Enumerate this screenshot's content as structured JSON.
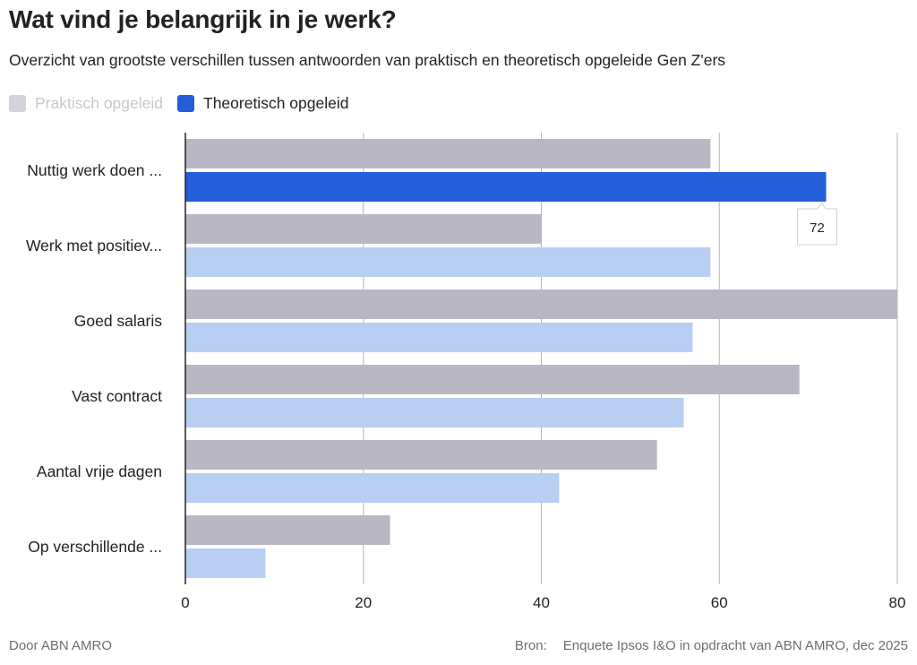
{
  "title": "Wat vind je belangrijk in je werk?",
  "subtitle": "Overzicht van grootste verschillen tussen antwoorden van praktisch en theoretisch opgeleide Gen Z'ers",
  "legend": [
    {
      "label": "Praktisch opgeleid",
      "color": "#d3d3d9",
      "active": false
    },
    {
      "label": "Theoretisch opgeleid",
      "color": "#245ed8",
      "active": true
    }
  ],
  "tooltip": {
    "text": "72"
  },
  "footer": {
    "credit": "Door ABN AMRO",
    "source_label": "Bron:",
    "source_text": "Enquete Ipsos I&O in opdracht van ABN AMRO, dec 2025"
  },
  "colors": {
    "praktisch_bar": "#bab7c4",
    "theoretisch_bar": "#b9cef3",
    "theoretisch_highlight": "#245ed8",
    "gridline": "#b6b6ba",
    "axis": "#222222"
  },
  "chart_data": {
    "type": "bar",
    "orientation": "horizontal",
    "categories": [
      "Nuttig werk doen ...",
      "Werk met positiev...",
      "Goed salaris",
      "Vast contract",
      "Aantal vrije dagen",
      "Op verschillende ..."
    ],
    "series": [
      {
        "name": "Praktisch opgeleid",
        "values": [
          59,
          40,
          80,
          69,
          53,
          23
        ]
      },
      {
        "name": "Theoretisch opgeleid",
        "values": [
          72,
          59,
          57,
          56,
          42,
          9
        ]
      }
    ],
    "xlim": [
      0,
      80
    ],
    "xticks": [
      0,
      20,
      40,
      60,
      80
    ],
    "grid": true,
    "legend_position": "top-left",
    "highlighted": {
      "category_index": 0,
      "series_index": 1
    }
  }
}
